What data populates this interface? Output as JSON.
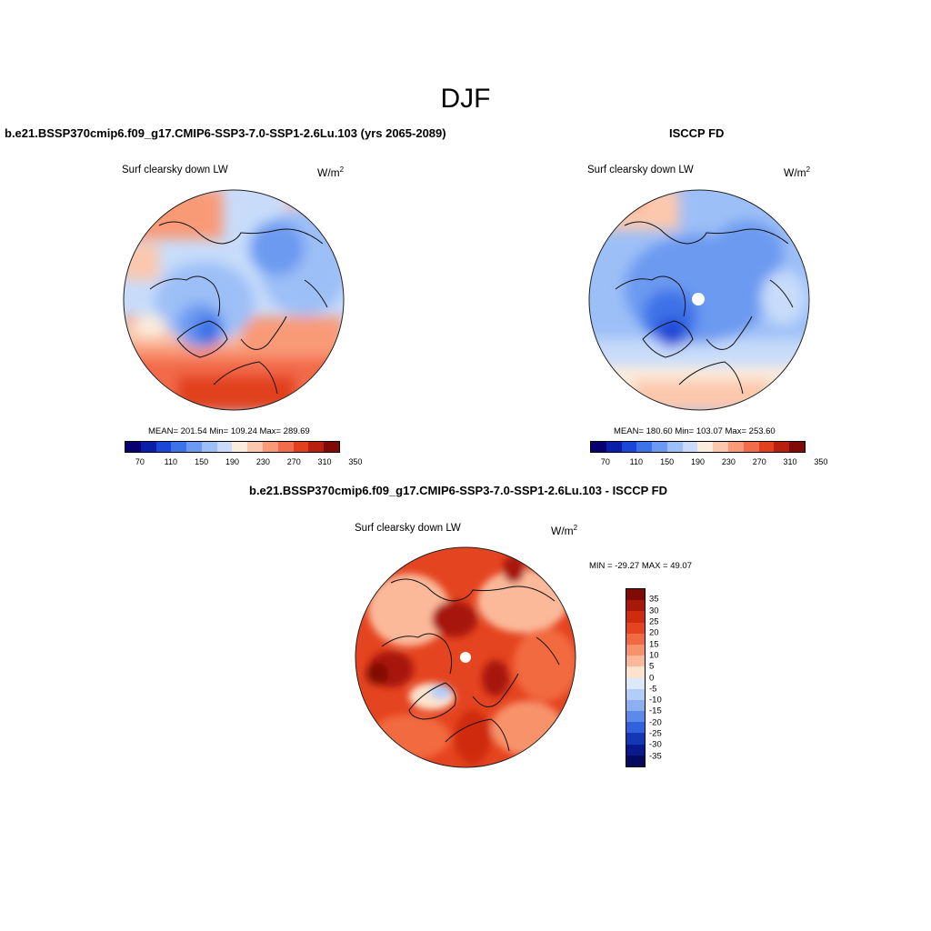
{
  "page": {
    "title": "DJF"
  },
  "panels": [
    {
      "title": "b.e21.BSSP370cmip6.f09_g17.CMIP6-SSP3-7.0-SSP1-2.6Lu.103 (yrs 2065-2089)",
      "variable": "Surf clearsky down LW",
      "units": "W/m",
      "units_sup": "2",
      "stats": "MEAN= 201.54  Min= 109.24  Max= 289.69",
      "colorbar_ticks": [
        "70",
        "110",
        "150",
        "190",
        "230",
        "270",
        "310",
        "350"
      ]
    },
    {
      "title": "ISCCP FD",
      "variable": "Surf clearsky down LW",
      "units": "W/m",
      "units_sup": "2",
      "stats": "MEAN= 180.60  Min= 103.07  Max= 253.60",
      "colorbar_ticks": [
        "70",
        "110",
        "150",
        "190",
        "230",
        "270",
        "310",
        "350"
      ]
    },
    {
      "title": "b.e21.BSSP370cmip6.f09_g17.CMIP6-SSP3-7.0-SSP1-2.6Lu.103 - ISCCP FD",
      "variable": "Surf clearsky down LW",
      "units": "W/m",
      "units_sup": "2",
      "stats": "MIN = -29.27 MAX =  49.07",
      "colorbar_ticks": [
        "35",
        "30",
        "25",
        "20",
        "15",
        "10",
        "5",
        "0",
        "-5",
        "-10",
        "-15",
        "-20",
        "-25",
        "-30",
        "-35"
      ]
    }
  ],
  "colors": {
    "abs_scale": [
      "#08006e",
      "#0a1fa8",
      "#1a47d6",
      "#3d72e8",
      "#6c9af0",
      "#9dbff7",
      "#c8dcfa",
      "#fbecdc",
      "#fcc8ad",
      "#f99a77",
      "#f26b4a",
      "#e1401f",
      "#b91f0e",
      "#800a05"
    ],
    "diff_scale": [
      "#800a05",
      "#a71807",
      "#cf2c0f",
      "#e54420",
      "#f26b40",
      "#f7926a",
      "#fbb99a",
      "#fde3cd",
      "#dbe9fa",
      "#b2cdf7",
      "#8caff2",
      "#5c8aeb",
      "#2f62dc",
      "#1238b6",
      "#0a1a8c",
      "#050a60"
    ]
  }
}
